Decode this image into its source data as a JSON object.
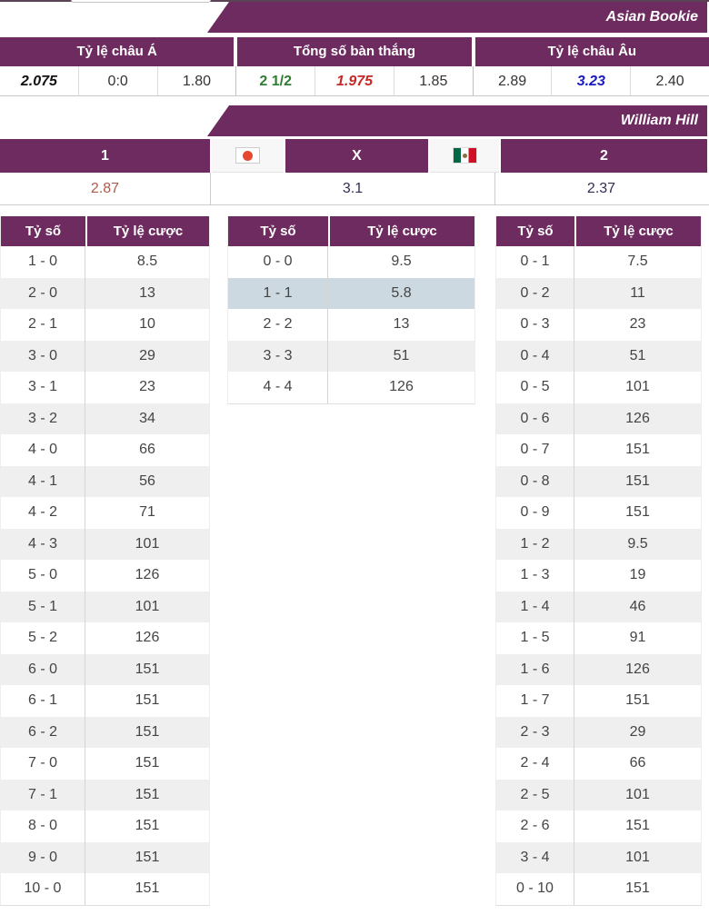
{
  "colors": {
    "accent_purple": "#6d2b5f",
    "row_alt_gray": "#efefef",
    "highlight_row_blue": "#ccd9e0",
    "odds_red": "#c62828",
    "odds_blue": "#1a1abf",
    "over_green": "#2e7d32",
    "home_odds_red": "#b05a4a"
  },
  "banners": {
    "asian_bookie": "Asian Bookie",
    "william_hill": "William Hill"
  },
  "asian_odds": {
    "groups": [
      {
        "label": "Tỷ lệ châu Á",
        "values": [
          {
            "text": "2.075",
            "style": "strong"
          },
          {
            "text": "0:0",
            "style": "plain"
          },
          {
            "text": "1.80",
            "style": "plain"
          }
        ]
      },
      {
        "label": "Tổng số bàn thắng",
        "values": [
          {
            "text": "2 1/2",
            "style": "green"
          },
          {
            "text": "1.975",
            "style": "red"
          },
          {
            "text": "1.85",
            "style": "plain"
          }
        ]
      },
      {
        "label": "Tỷ lệ châu Âu",
        "values": [
          {
            "text": "2.89",
            "style": "plain"
          },
          {
            "text": "3.23",
            "style": "blue"
          },
          {
            "text": "2.40",
            "style": "plain"
          }
        ]
      }
    ]
  },
  "william_hill": {
    "col_home": "1",
    "col_draw": "X",
    "col_away": "2",
    "flags": {
      "home": "japan",
      "away": "mexico"
    },
    "odds": {
      "home": "2.87",
      "draw": "3.1",
      "away": "2.37"
    }
  },
  "score_tables": {
    "headers": {
      "score": "Tỷ số",
      "odds": "Tỷ lệ cược"
    },
    "home": [
      {
        "score": "1 - 0",
        "odds": "8.5"
      },
      {
        "score": "2 - 0",
        "odds": "13"
      },
      {
        "score": "2 - 1",
        "odds": "10"
      },
      {
        "score": "3 - 0",
        "odds": "29"
      },
      {
        "score": "3 - 1",
        "odds": "23"
      },
      {
        "score": "3 - 2",
        "odds": "34"
      },
      {
        "score": "4 - 0",
        "odds": "66"
      },
      {
        "score": "4 - 1",
        "odds": "56"
      },
      {
        "score": "4 - 2",
        "odds": "71"
      },
      {
        "score": "4 - 3",
        "odds": "101"
      },
      {
        "score": "5 - 0",
        "odds": "126"
      },
      {
        "score": "5 - 1",
        "odds": "101"
      },
      {
        "score": "5 - 2",
        "odds": "126"
      },
      {
        "score": "6 - 0",
        "odds": "151"
      },
      {
        "score": "6 - 1",
        "odds": "151"
      },
      {
        "score": "6 - 2",
        "odds": "151"
      },
      {
        "score": "7 - 0",
        "odds": "151"
      },
      {
        "score": "7 - 1",
        "odds": "151"
      },
      {
        "score": "8 - 0",
        "odds": "151"
      },
      {
        "score": "9 - 0",
        "odds": "151"
      },
      {
        "score": "10 - 0",
        "odds": "151"
      }
    ],
    "draw": [
      {
        "score": "0 - 0",
        "odds": "9.5"
      },
      {
        "score": "1 - 1",
        "odds": "5.8",
        "hl": true
      },
      {
        "score": "2 - 2",
        "odds": "13"
      },
      {
        "score": "3 - 3",
        "odds": "51"
      },
      {
        "score": "4 - 4",
        "odds": "126"
      }
    ],
    "away": [
      {
        "score": "0 - 1",
        "odds": "7.5"
      },
      {
        "score": "0 - 2",
        "odds": "11"
      },
      {
        "score": "0 - 3",
        "odds": "23"
      },
      {
        "score": "0 - 4",
        "odds": "51"
      },
      {
        "score": "0 - 5",
        "odds": "101"
      },
      {
        "score": "0 - 6",
        "odds": "126"
      },
      {
        "score": "0 - 7",
        "odds": "151"
      },
      {
        "score": "0 - 8",
        "odds": "151"
      },
      {
        "score": "0 - 9",
        "odds": "151"
      },
      {
        "score": "1 - 2",
        "odds": "9.5"
      },
      {
        "score": "1 - 3",
        "odds": "19"
      },
      {
        "score": "1 - 4",
        "odds": "46"
      },
      {
        "score": "1 - 5",
        "odds": "91"
      },
      {
        "score": "1 - 6",
        "odds": "126"
      },
      {
        "score": "1 - 7",
        "odds": "151"
      },
      {
        "score": "2 - 3",
        "odds": "29"
      },
      {
        "score": "2 - 4",
        "odds": "66"
      },
      {
        "score": "2 - 5",
        "odds": "101"
      },
      {
        "score": "2 - 6",
        "odds": "151"
      },
      {
        "score": "3 - 4",
        "odds": "101"
      },
      {
        "score": "0 - 10",
        "odds": "151"
      }
    ]
  }
}
